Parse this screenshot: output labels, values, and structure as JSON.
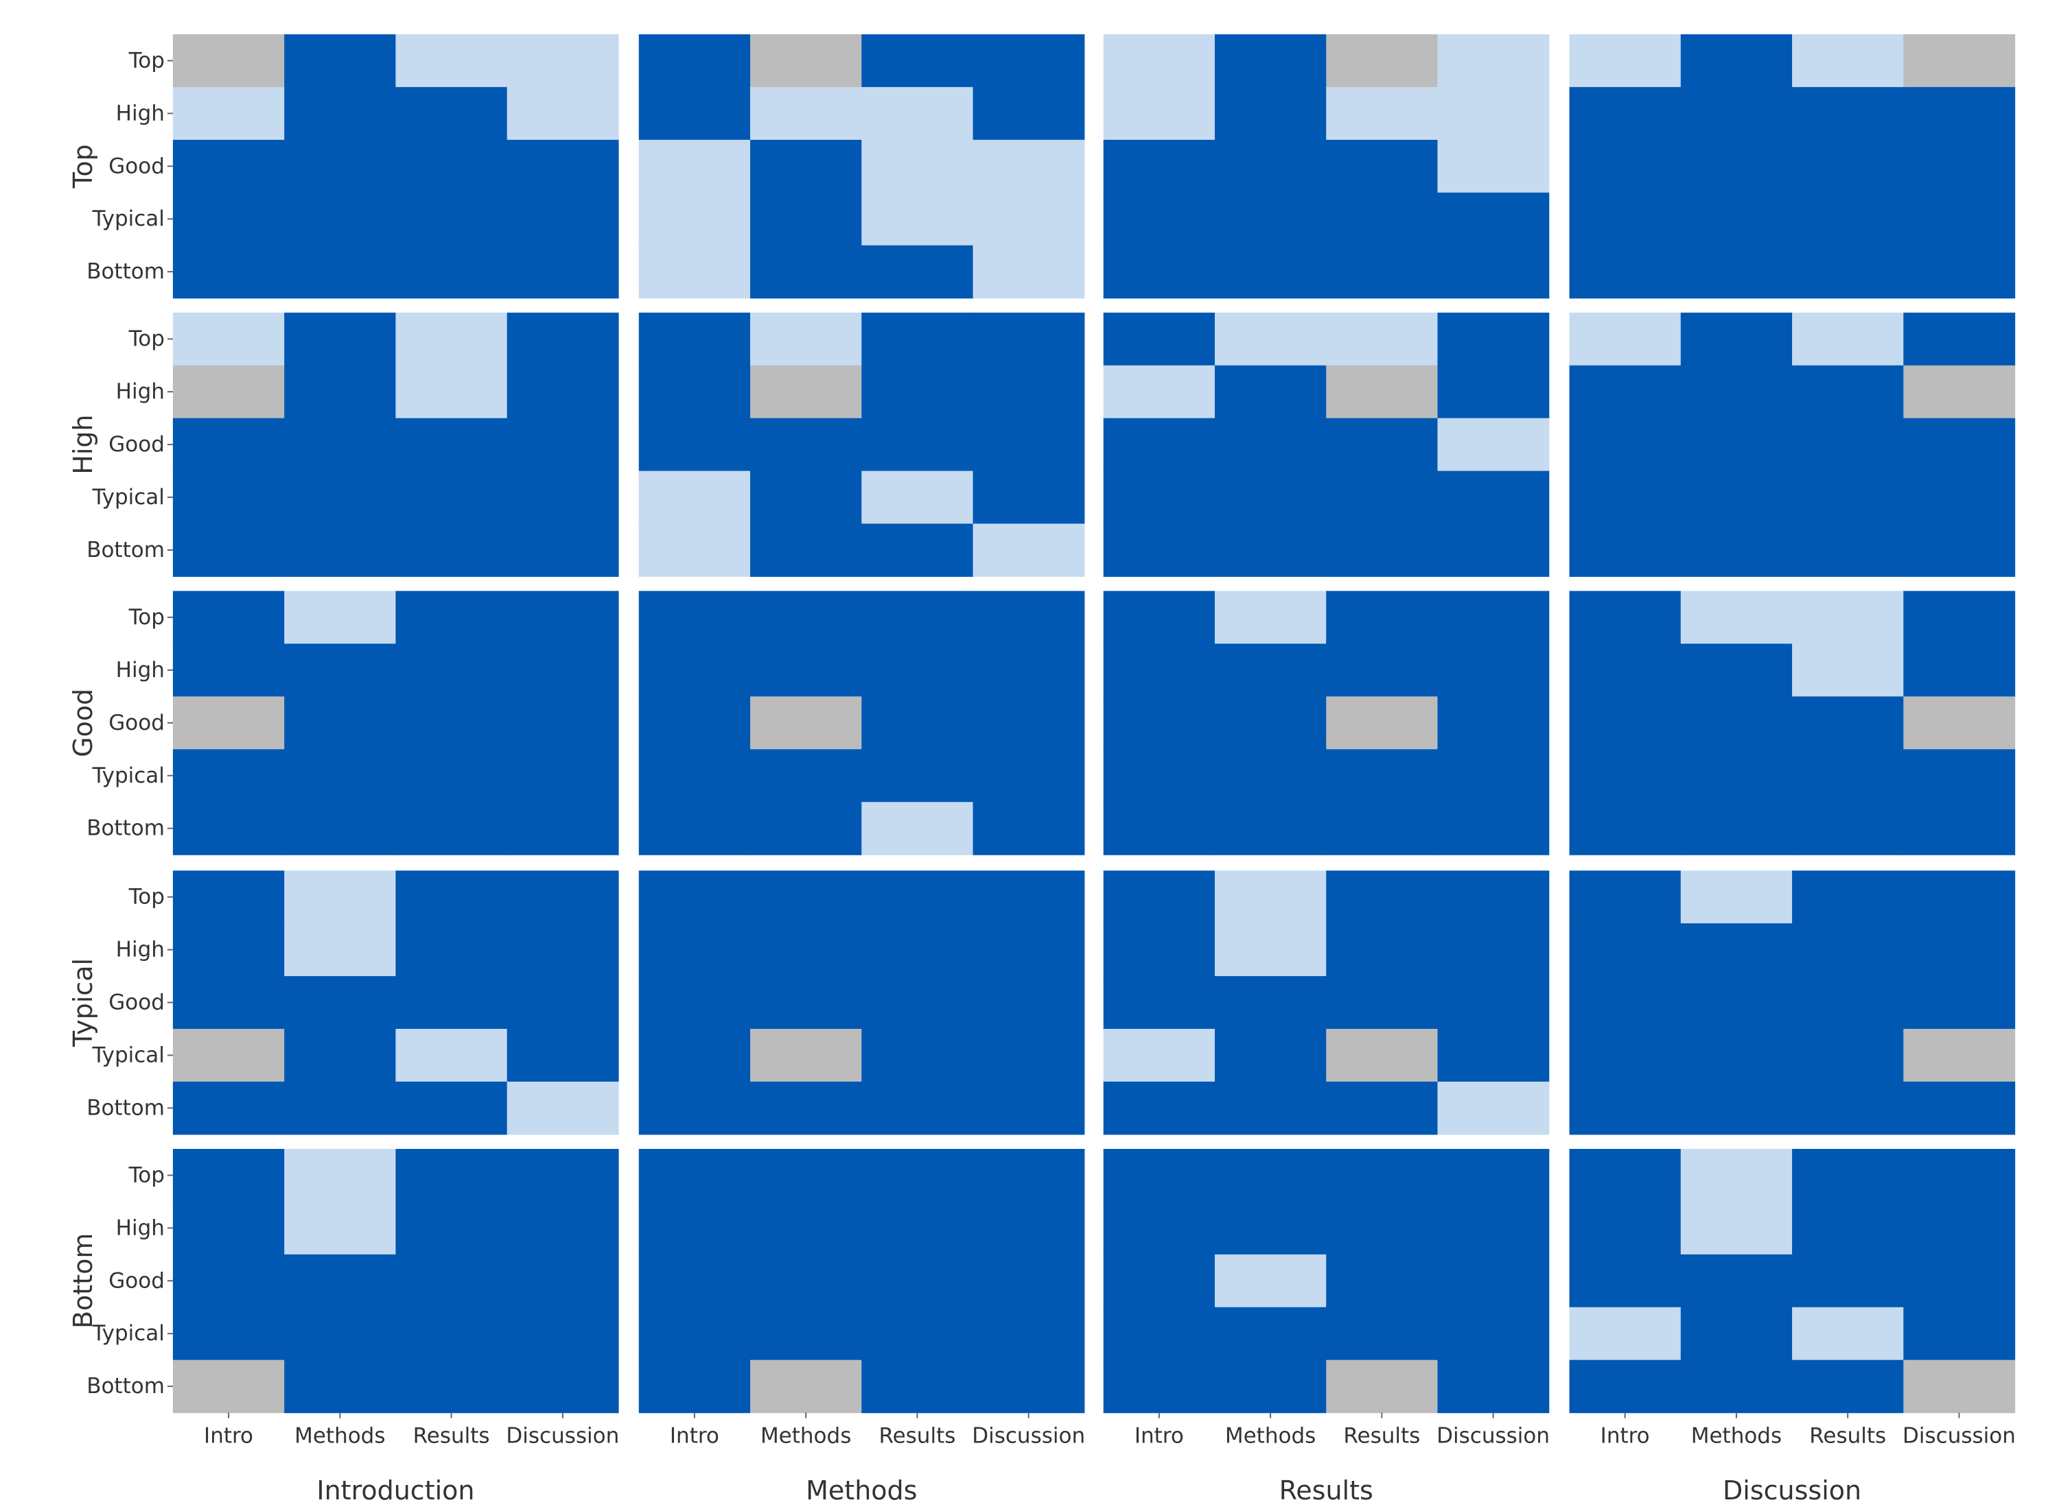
{
  "colors": {
    "dark": "#0058b3",
    "light": "#c6dbf0",
    "gray": "#bcbcbc",
    "tick": "#666666",
    "text": "#333333"
  },
  "chart_data": {
    "type": "heatmap",
    "facet_rows": [
      "Top",
      "High",
      "Good",
      "Typical",
      "Bottom"
    ],
    "facet_cols": [
      "Introduction",
      "Methods",
      "Results",
      "Discussion"
    ],
    "cell_rows": [
      "Top",
      "High",
      "Good",
      "Typical",
      "Bottom"
    ],
    "cell_cols": [
      "Intro",
      "Methods",
      "Results",
      "Discussion"
    ],
    "legend_codes": {
      "0": "dark",
      "1": "light",
      "2": "gray"
    },
    "panels": [
      [
        [
          [
            2,
            0,
            1,
            1
          ],
          [
            1,
            0,
            0,
            1
          ],
          [
            0,
            0,
            0,
            0
          ],
          [
            0,
            0,
            0,
            0
          ],
          [
            0,
            0,
            0,
            0
          ]
        ],
        [
          [
            0,
            2,
            0,
            0
          ],
          [
            0,
            1,
            1,
            0
          ],
          [
            1,
            0,
            1,
            1
          ],
          [
            1,
            0,
            1,
            1
          ],
          [
            1,
            0,
            0,
            1
          ]
        ],
        [
          [
            1,
            0,
            2,
            1
          ],
          [
            1,
            0,
            1,
            1
          ],
          [
            0,
            0,
            0,
            1
          ],
          [
            0,
            0,
            0,
            0
          ],
          [
            0,
            0,
            0,
            0
          ]
        ],
        [
          [
            1,
            0,
            1,
            2
          ],
          [
            0,
            0,
            0,
            0
          ],
          [
            0,
            0,
            0,
            0
          ],
          [
            0,
            0,
            0,
            0
          ],
          [
            0,
            0,
            0,
            0
          ]
        ]
      ],
      [
        [
          [
            1,
            0,
            1,
            0
          ],
          [
            2,
            0,
            1,
            0
          ],
          [
            0,
            0,
            0,
            0
          ],
          [
            0,
            0,
            0,
            0
          ],
          [
            0,
            0,
            0,
            0
          ]
        ],
        [
          [
            0,
            1,
            0,
            0
          ],
          [
            0,
            2,
            0,
            0
          ],
          [
            0,
            0,
            0,
            0
          ],
          [
            1,
            0,
            1,
            0
          ],
          [
            1,
            0,
            0,
            1
          ]
        ],
        [
          [
            0,
            1,
            1,
            0
          ],
          [
            1,
            0,
            2,
            0
          ],
          [
            0,
            0,
            0,
            1
          ],
          [
            0,
            0,
            0,
            0
          ],
          [
            0,
            0,
            0,
            0
          ]
        ],
        [
          [
            1,
            0,
            1,
            0
          ],
          [
            0,
            0,
            0,
            2
          ],
          [
            0,
            0,
            0,
            0
          ],
          [
            0,
            0,
            0,
            0
          ],
          [
            0,
            0,
            0,
            0
          ]
        ]
      ],
      [
        [
          [
            0,
            1,
            0,
            0
          ],
          [
            0,
            0,
            0,
            0
          ],
          [
            2,
            0,
            0,
            0
          ],
          [
            0,
            0,
            0,
            0
          ],
          [
            0,
            0,
            0,
            0
          ]
        ],
        [
          [
            0,
            0,
            0,
            0
          ],
          [
            0,
            0,
            0,
            0
          ],
          [
            0,
            2,
            0,
            0
          ],
          [
            0,
            0,
            0,
            0
          ],
          [
            0,
            0,
            1,
            0
          ]
        ],
        [
          [
            0,
            1,
            0,
            0
          ],
          [
            0,
            0,
            0,
            0
          ],
          [
            0,
            0,
            2,
            0
          ],
          [
            0,
            0,
            0,
            0
          ],
          [
            0,
            0,
            0,
            0
          ]
        ],
        [
          [
            0,
            1,
            1,
            0
          ],
          [
            0,
            0,
            1,
            0
          ],
          [
            0,
            0,
            0,
            2
          ],
          [
            0,
            0,
            0,
            0
          ],
          [
            0,
            0,
            0,
            0
          ]
        ]
      ],
      [
        [
          [
            0,
            1,
            0,
            0
          ],
          [
            0,
            1,
            0,
            0
          ],
          [
            0,
            0,
            0,
            0
          ],
          [
            2,
            0,
            1,
            0
          ],
          [
            0,
            0,
            0,
            1
          ]
        ],
        [
          [
            0,
            0,
            0,
            0
          ],
          [
            0,
            0,
            0,
            0
          ],
          [
            0,
            0,
            0,
            0
          ],
          [
            0,
            2,
            0,
            0
          ],
          [
            0,
            0,
            0,
            0
          ]
        ],
        [
          [
            0,
            1,
            0,
            0
          ],
          [
            0,
            1,
            0,
            0
          ],
          [
            0,
            0,
            0,
            0
          ],
          [
            1,
            0,
            2,
            0
          ],
          [
            0,
            0,
            0,
            1
          ]
        ],
        [
          [
            0,
            1,
            0,
            0
          ],
          [
            0,
            0,
            0,
            0
          ],
          [
            0,
            0,
            0,
            0
          ],
          [
            0,
            0,
            0,
            2
          ],
          [
            0,
            0,
            0,
            0
          ]
        ]
      ],
      [
        [
          [
            0,
            1,
            0,
            0
          ],
          [
            0,
            1,
            0,
            0
          ],
          [
            0,
            0,
            0,
            0
          ],
          [
            0,
            0,
            0,
            0
          ],
          [
            2,
            0,
            0,
            0
          ]
        ],
        [
          [
            0,
            0,
            0,
            0
          ],
          [
            0,
            0,
            0,
            0
          ],
          [
            0,
            0,
            0,
            0
          ],
          [
            0,
            0,
            0,
            0
          ],
          [
            0,
            2,
            0,
            0
          ]
        ],
        [
          [
            0,
            0,
            0,
            0
          ],
          [
            0,
            0,
            0,
            0
          ],
          [
            0,
            1,
            0,
            0
          ],
          [
            0,
            0,
            0,
            0
          ],
          [
            0,
            0,
            2,
            0
          ]
        ],
        [
          [
            0,
            1,
            0,
            0
          ],
          [
            0,
            1,
            0,
            0
          ],
          [
            0,
            0,
            0,
            0
          ],
          [
            1,
            0,
            1,
            0
          ],
          [
            0,
            0,
            0,
            2
          ]
        ]
      ]
    ]
  }
}
